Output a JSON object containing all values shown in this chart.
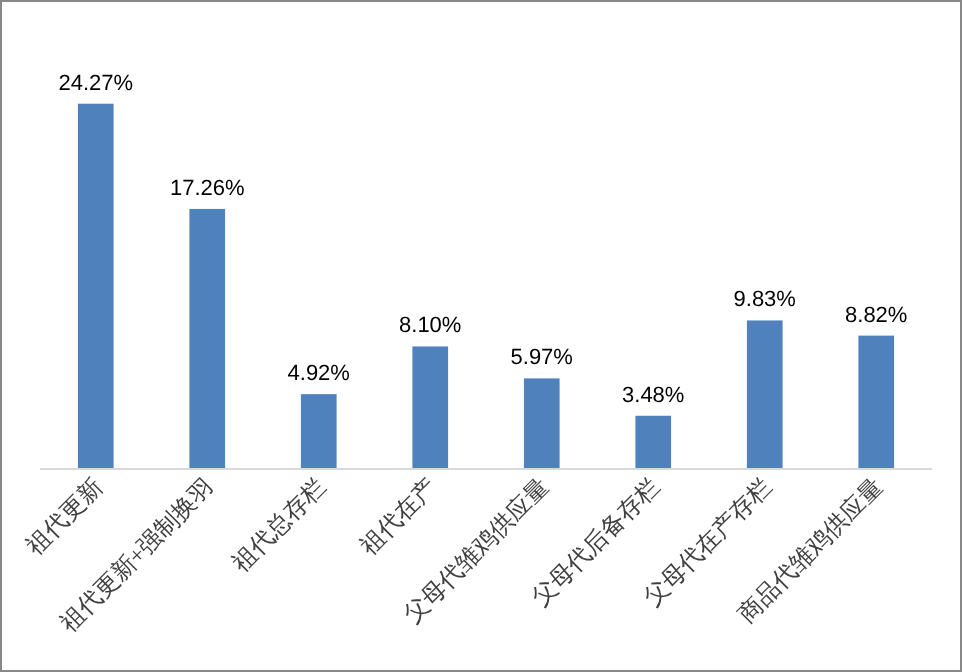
{
  "chart_data": {
    "type": "bar",
    "categories": [
      "祖代更新",
      "祖代更新+强制换羽",
      "祖代总存栏",
      "祖代在产",
      "父母代雏鸡供应量",
      "父母代后备存栏",
      "父母代在产存栏",
      "商品代雏鸡供应量"
    ],
    "values": [
      24.27,
      17.26,
      4.92,
      8.1,
      5.97,
      3.48,
      9.83,
      8.82
    ],
    "value_labels": [
      "24.27%",
      "17.26%",
      "4.92%",
      "8.10%",
      "5.97%",
      "3.48%",
      "9.83%",
      "8.82%"
    ],
    "color": "#4f81bd"
  }
}
